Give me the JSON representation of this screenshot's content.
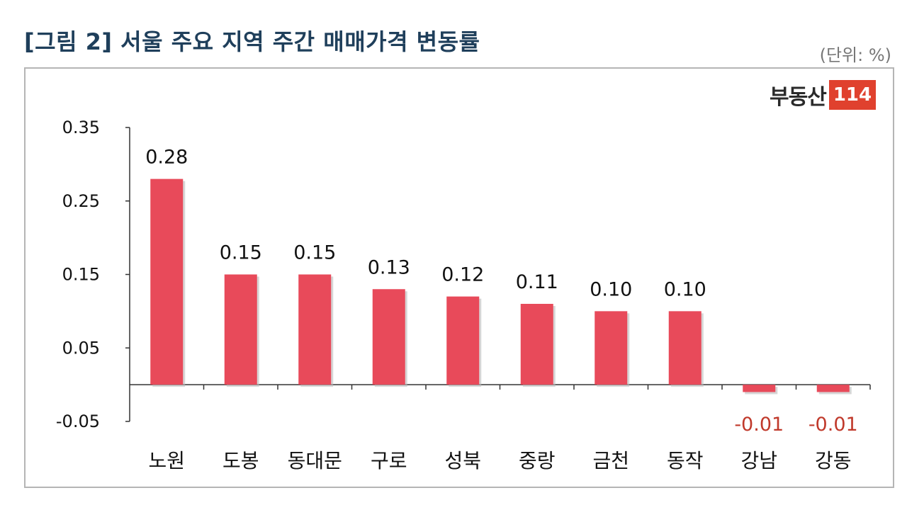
{
  "title": "[그림 2] 서울 주요 지역 주간 매매가격 변동률",
  "unit": "(단위: %)",
  "logo": {
    "text": "부동산",
    "badge": "114"
  },
  "colors": {
    "bar": "#e84a5a",
    "title": "#1f3f5b",
    "negative_label": "#c0392b",
    "logo_badge": "#e0412e"
  },
  "chart_data": {
    "type": "bar",
    "title": "[그림 2] 서울 주요 지역 주간 매매가격 변동률",
    "categories": [
      "노원",
      "도봉",
      "동대문",
      "구로",
      "성북",
      "중랑",
      "금천",
      "동작",
      "강남",
      "강동"
    ],
    "values": [
      0.28,
      0.15,
      0.15,
      0.13,
      0.12,
      0.11,
      0.1,
      0.1,
      -0.01,
      -0.01
    ],
    "data_labels": [
      "0.28",
      "0.15",
      "0.15",
      "0.13",
      "0.12",
      "0.11",
      "0.10",
      "0.10",
      "-0.01",
      "-0.01"
    ],
    "ylim": [
      -0.05,
      0.35
    ],
    "yticks": [
      0.35,
      0.25,
      0.15,
      0.05,
      -0.05
    ],
    "ytick_labels": [
      "0.35",
      "0.25",
      "0.15",
      "0.05",
      "-0.05"
    ],
    "xlabel": "",
    "ylabel": "",
    "grid": false,
    "legend": "none"
  }
}
